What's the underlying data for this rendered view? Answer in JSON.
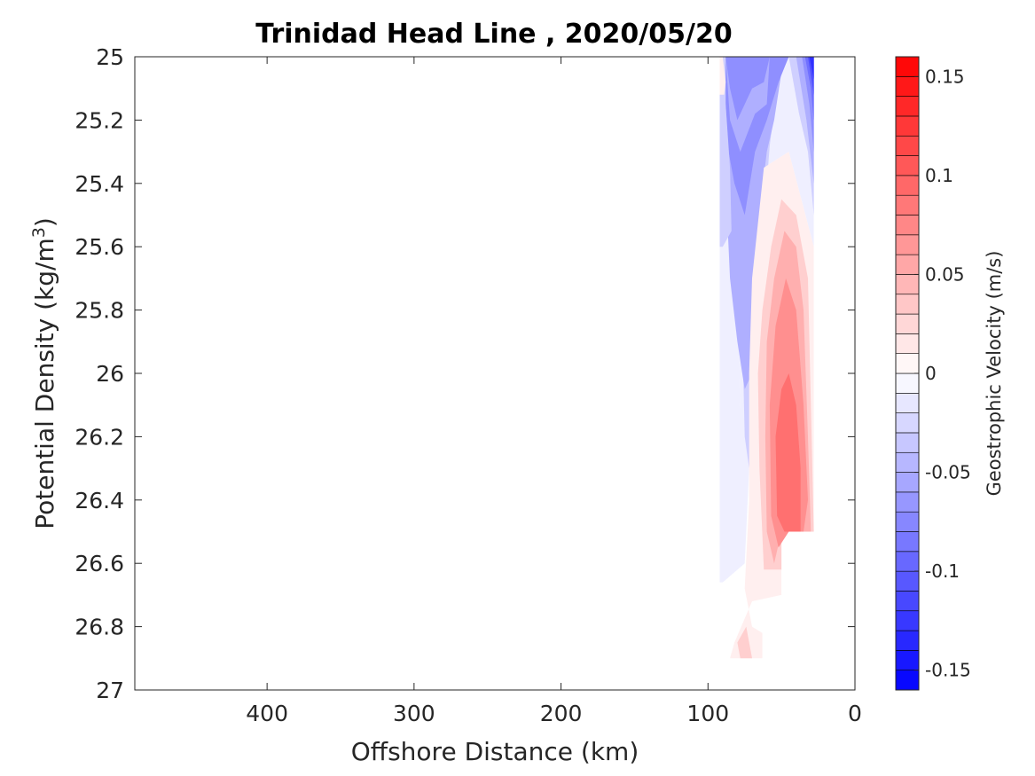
{
  "chart_data": {
    "type": "heatmap",
    "title": "Trinidad Head Line , 2020/05/20",
    "xlabel": "Offshore Distance (km)",
    "ylabel_main": "Potential Density (kg/m",
    "ylabel_sup": "3",
    "ylabel_close": ")",
    "colorbar_label": "Geostrophic Velocity (m/s)",
    "xlim": [
      490,
      0
    ],
    "x_reversed": true,
    "ylim": [
      25,
      27
    ],
    "y_reversed": true,
    "x_ticks": [
      {
        "value": 400,
        "label": "400"
      },
      {
        "value": 300,
        "label": "300"
      },
      {
        "value": 200,
        "label": "200"
      },
      {
        "value": 100,
        "label": "100"
      },
      {
        "value": 0,
        "label": "0"
      }
    ],
    "y_ticks": [
      {
        "value": 25,
        "label": "25"
      },
      {
        "value": 25.2,
        "label": "25.2"
      },
      {
        "value": 25.4,
        "label": "25.4"
      },
      {
        "value": 25.6,
        "label": "25.6"
      },
      {
        "value": 25.8,
        "label": "25.8"
      },
      {
        "value": 26,
        "label": "26"
      },
      {
        "value": 26.2,
        "label": "26.2"
      },
      {
        "value": 26.4,
        "label": "26.4"
      },
      {
        "value": 26.6,
        "label": "26.6"
      },
      {
        "value": 26.8,
        "label": "26.8"
      },
      {
        "value": 27,
        "label": "27"
      }
    ],
    "colorbar": {
      "cmin": -0.16,
      "cmax": 0.16,
      "levels": 32,
      "negative_color": "#0000ff",
      "positive_color": "#ff0000",
      "ticks": [
        {
          "value": 0.15,
          "label": "0.15"
        },
        {
          "value": 0.1,
          "label": "0.1"
        },
        {
          "value": 0.05,
          "label": "0.05"
        },
        {
          "value": 0,
          "label": "0"
        },
        {
          "value": -0.05,
          "label": "-0.05"
        },
        {
          "value": -0.1,
          "label": "-0.1"
        },
        {
          "value": -0.15,
          "label": "-0.15"
        }
      ]
    },
    "regions": [
      {
        "name": "blue-faint-west",
        "level": -0.01,
        "points": [
          [
            92,
            25
          ],
          [
            85,
            25
          ],
          [
            85,
            25.25
          ],
          [
            80,
            25.6
          ],
          [
            78,
            26.1
          ],
          [
            75,
            26.3
          ],
          [
            75,
            26.6
          ],
          [
            90,
            26.66
          ],
          [
            92,
            26.66
          ]
        ]
      },
      {
        "name": "blue-faint-core",
        "level": -0.01,
        "points": [
          [
            85,
            25
          ],
          [
            28,
            25
          ],
          [
            28,
            25.6
          ],
          [
            45,
            25.3
          ],
          [
            62,
            25.35
          ],
          [
            70,
            25.8
          ],
          [
            72,
            26.3
          ],
          [
            75,
            26.6
          ],
          [
            78,
            26.1
          ],
          [
            80,
            25.6
          ],
          [
            85,
            25.25
          ]
        ]
      },
      {
        "name": "blue-light-west",
        "level": -0.03,
        "points": [
          [
            85,
            25
          ],
          [
            50,
            25
          ],
          [
            58,
            25.28
          ],
          [
            65,
            25.7
          ],
          [
            68,
            26
          ],
          [
            72,
            26.3
          ],
          [
            75,
            26.2
          ],
          [
            77,
            25.8
          ],
          [
            80,
            25.4
          ],
          [
            85,
            25.2
          ]
        ]
      },
      {
        "name": "blue-mid",
        "level": -0.05,
        "points": [
          [
            90,
            25
          ],
          [
            45,
            25
          ],
          [
            50,
            25.05
          ],
          [
            55,
            25.2
          ],
          [
            60,
            25.3
          ],
          [
            65,
            25.5
          ],
          [
            68,
            25.9
          ],
          [
            70,
            26.0
          ],
          [
            75,
            26.05
          ],
          [
            80,
            25.9
          ],
          [
            85,
            25.7
          ],
          [
            88,
            25.4
          ],
          [
            90,
            25.2
          ]
        ]
      },
      {
        "name": "blue-mid-2",
        "level": -0.07,
        "points": [
          [
            90,
            25
          ],
          [
            45,
            25
          ],
          [
            52,
            25.08
          ],
          [
            60,
            25.2
          ],
          [
            68,
            25.3
          ],
          [
            75,
            25.5
          ],
          [
            82,
            25.4
          ],
          [
            86,
            25.3
          ],
          [
            88,
            25.15
          ]
        ]
      },
      {
        "name": "blue-deep-1",
        "level": -0.05,
        "points": [
          [
            88,
            25
          ],
          [
            58,
            25
          ],
          [
            60,
            25.15
          ],
          [
            68,
            25.18
          ],
          [
            78,
            25.3
          ],
          [
            85,
            25.2
          ]
        ]
      },
      {
        "name": "blue-mid-3",
        "level": -0.07,
        "points": [
          [
            88,
            25
          ],
          [
            58,
            25
          ],
          [
            62,
            25.08
          ],
          [
            70,
            25.1
          ],
          [
            80,
            25.2
          ],
          [
            85,
            25.1
          ]
        ]
      },
      {
        "name": "blue-west-strip",
        "level": -0.03,
        "points": [
          [
            92,
            25
          ],
          [
            88,
            25
          ],
          [
            88,
            25.15
          ],
          [
            85,
            25.35
          ],
          [
            84,
            25.55
          ],
          [
            90,
            25.6
          ],
          [
            92,
            25.6
          ]
        ]
      },
      {
        "name": "blue-coast-1",
        "level": -0.03,
        "points": [
          [
            45,
            25
          ],
          [
            28,
            25
          ],
          [
            28,
            25.5
          ],
          [
            32,
            25.3
          ],
          [
            38,
            25.18
          ]
        ]
      },
      {
        "name": "blue-coast-2",
        "level": -0.05,
        "points": [
          [
            40,
            25
          ],
          [
            28,
            25
          ],
          [
            28,
            25.4
          ],
          [
            33,
            25.2
          ]
        ]
      },
      {
        "name": "blue-coast-3",
        "level": -0.07,
        "points": [
          [
            36,
            25
          ],
          [
            28,
            25
          ],
          [
            28,
            25.3
          ],
          [
            31,
            25.15
          ]
        ]
      },
      {
        "name": "blue-coast-4",
        "level": -0.09,
        "points": [
          [
            34,
            25
          ],
          [
            28,
            25
          ],
          [
            28,
            25.2
          ],
          [
            30,
            25.1
          ]
        ]
      },
      {
        "name": "blue-coast-5",
        "level": -0.11,
        "points": [
          [
            32,
            25
          ],
          [
            28,
            25
          ],
          [
            28,
            25.12
          ]
        ]
      },
      {
        "name": "blue-coast-6",
        "level": -0.13,
        "points": [
          [
            31,
            25
          ],
          [
            28,
            25
          ],
          [
            28,
            25.07
          ]
        ]
      },
      {
        "name": "red-corner",
        "level": 0.01,
        "points": [
          [
            92,
            25
          ],
          [
            90,
            25
          ],
          [
            88,
            25.08
          ],
          [
            89,
            25.12
          ],
          [
            92,
            25.12
          ]
        ]
      },
      {
        "name": "red-faint-main",
        "level": 0.01,
        "points": [
          [
            62,
            25.35
          ],
          [
            45,
            25.3
          ],
          [
            28,
            25.6
          ],
          [
            28,
            26.5
          ],
          [
            50,
            26.5
          ],
          [
            50,
            26.7
          ],
          [
            70,
            26.72
          ],
          [
            82,
            26.85
          ],
          [
            85,
            26.9
          ],
          [
            63,
            26.9
          ],
          [
            63,
            26.82
          ],
          [
            70,
            26.8
          ],
          [
            75,
            26.68
          ],
          [
            72,
            26.4
          ],
          [
            72,
            26.0
          ],
          [
            70,
            25.7
          ]
        ]
      },
      {
        "name": "red-light",
        "level": 0.03,
        "points": [
          [
            50,
            25.45
          ],
          [
            40,
            25.5
          ],
          [
            32,
            25.7
          ],
          [
            28,
            26.5
          ],
          [
            50,
            26.5
          ],
          [
            50,
            26.62
          ],
          [
            62,
            26.62
          ],
          [
            65,
            26.3
          ],
          [
            66,
            26.0
          ],
          [
            63,
            25.8
          ],
          [
            57,
            25.6
          ]
        ]
      },
      {
        "name": "red-mid",
        "level": 0.05,
        "points": [
          [
            48,
            25.55
          ],
          [
            40,
            25.6
          ],
          [
            35,
            25.8
          ],
          [
            32,
            26.2
          ],
          [
            30,
            26.5
          ],
          [
            42,
            26.5
          ],
          [
            50,
            26.5
          ],
          [
            55,
            26.6
          ],
          [
            60,
            26.5
          ],
          [
            61,
            26.2
          ],
          [
            60,
            25.9
          ],
          [
            55,
            25.7
          ]
        ]
      },
      {
        "name": "red-mid-2",
        "level": 0.07,
        "points": [
          [
            47,
            25.7
          ],
          [
            40,
            25.8
          ],
          [
            35,
            26.1
          ],
          [
            32,
            26.4
          ],
          [
            35,
            26.5
          ],
          [
            45,
            26.5
          ],
          [
            52,
            26.55
          ],
          [
            57,
            26.45
          ],
          [
            58,
            26.1
          ],
          [
            54,
            25.85
          ]
        ]
      },
      {
        "name": "red-deep",
        "level": 0.09,
        "points": [
          [
            45,
            26.0
          ],
          [
            40,
            26.1
          ],
          [
            37,
            26.3
          ],
          [
            37,
            26.5
          ],
          [
            48,
            26.5
          ],
          [
            53,
            26.45
          ],
          [
            54,
            26.2
          ],
          [
            50,
            26.05
          ]
        ]
      },
      {
        "name": "red-bottom-1",
        "level": 0.03,
        "points": [
          [
            80,
            26.85
          ],
          [
            74,
            26.8
          ],
          [
            70,
            26.9
          ],
          [
            78,
            26.9
          ]
        ]
      }
    ]
  }
}
